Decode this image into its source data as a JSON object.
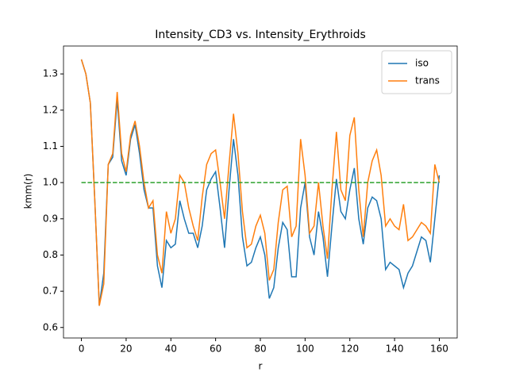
{
  "chart_data": {
    "type": "line",
    "title": "Intensity_CD3 vs. Intensity_Erythroids",
    "x_label": "r",
    "y_label": "kmm(r)",
    "x": [
      0,
      2,
      4,
      6,
      8,
      10,
      12,
      14,
      16,
      18,
      20,
      22,
      24,
      26,
      28,
      30,
      32,
      34,
      36,
      38,
      40,
      42,
      44,
      46,
      48,
      50,
      52,
      54,
      56,
      58,
      60,
      62,
      64,
      66,
      68,
      70,
      72,
      74,
      76,
      78,
      80,
      82,
      84,
      86,
      88,
      90,
      92,
      94,
      96,
      98,
      100,
      102,
      104,
      106,
      108,
      110,
      112,
      114,
      116,
      118,
      120,
      122,
      124,
      126,
      128,
      130,
      132,
      134,
      136,
      138,
      140,
      142,
      144,
      146,
      148,
      150,
      152,
      154,
      156,
      158,
      160
    ],
    "series": [
      {
        "name": "iso",
        "color": "#1f77b4",
        "values": [
          1.34,
          1.3,
          1.22,
          0.95,
          0.66,
          0.75,
          1.05,
          1.07,
          1.23,
          1.06,
          1.02,
          1.12,
          1.16,
          1.08,
          0.98,
          0.93,
          0.93,
          0.77,
          0.71,
          0.84,
          0.82,
          0.83,
          0.95,
          0.9,
          0.86,
          0.86,
          0.82,
          0.88,
          0.98,
          1.01,
          1.03,
          0.93,
          0.82,
          0.98,
          1.12,
          1.02,
          0.85,
          0.77,
          0.78,
          0.82,
          0.85,
          0.8,
          0.68,
          0.71,
          0.82,
          0.89,
          0.87,
          0.74,
          0.74,
          0.93,
          1.0,
          0.85,
          0.8,
          0.92,
          0.85,
          0.74,
          0.88,
          1.01,
          0.92,
          0.9,
          0.98,
          1.04,
          0.9,
          0.83,
          0.93,
          0.96,
          0.95,
          0.9,
          0.76,
          0.78,
          0.77,
          0.76,
          0.71,
          0.75,
          0.77,
          0.81,
          0.85,
          0.84,
          0.78,
          0.9,
          1.02
        ]
      },
      {
        "name": "trans",
        "color": "#ff7f0e",
        "values": [
          1.34,
          1.3,
          1.22,
          0.95,
          0.66,
          0.72,
          1.05,
          1.08,
          1.25,
          1.08,
          1.03,
          1.13,
          1.17,
          1.1,
          1.0,
          0.93,
          0.95,
          0.8,
          0.75,
          0.92,
          0.86,
          0.9,
          1.02,
          1.0,
          0.93,
          0.88,
          0.84,
          0.96,
          1.05,
          1.08,
          1.09,
          1.0,
          0.9,
          1.05,
          1.19,
          1.08,
          0.92,
          0.82,
          0.83,
          0.88,
          0.91,
          0.86,
          0.73,
          0.76,
          0.89,
          0.98,
          0.99,
          0.85,
          0.88,
          1.12,
          1.02,
          0.86,
          0.88,
          1.0,
          0.88,
          0.79,
          0.98,
          1.14,
          0.98,
          0.95,
          1.13,
          1.18,
          0.98,
          0.85,
          1.0,
          1.06,
          1.09,
          1.02,
          0.88,
          0.9,
          0.88,
          0.87,
          0.94,
          0.84,
          0.85,
          0.87,
          0.89,
          0.88,
          0.86,
          1.05,
          1.0
        ]
      }
    ],
    "hline": {
      "y": 1,
      "color": "#2ca02c"
    },
    "xlim": [
      -8,
      168
    ],
    "ylim": [
      0.571,
      1.377
    ],
    "xticks": [
      0,
      20,
      40,
      60,
      80,
      100,
      120,
      140,
      160
    ],
    "yticks": [
      0.6,
      0.7,
      0.8,
      0.9,
      {
        "value": 1,
        "label": "1.0"
      },
      1.1,
      1.2,
      1.3
    ],
    "legend": "upper right",
    "grid": false
  }
}
